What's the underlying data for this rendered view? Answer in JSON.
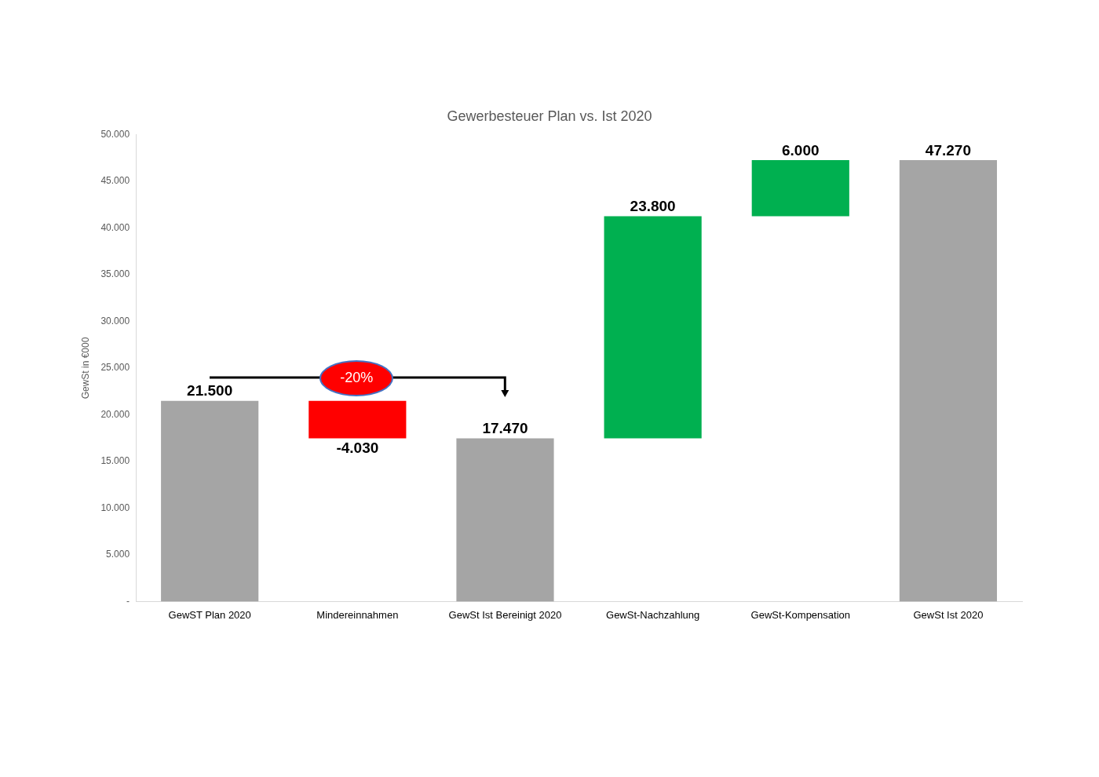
{
  "chart_data": {
    "type": "bar",
    "title": "Gewerbesteuer Plan vs. Ist 2020",
    "ylabel": "GewSt in €000",
    "categories": [
      "GewST Plan 2020",
      "Mindereinnahmen",
      "GewSt Ist Bereinigt 2020",
      "GewSt-Nachzahlung",
      "GewSt-Kompensation",
      "GewSt Ist 2020"
    ],
    "values": [
      21500,
      -4030,
      17470,
      23800,
      6000,
      47270
    ],
    "base": [
      0,
      21500,
      0,
      17470,
      41270,
      0
    ],
    "colors": [
      "#a5a5a5",
      "#ff0000",
      "#a5a5a5",
      "#00b050",
      "#00b050",
      "#a5a5a5"
    ],
    "value_labels": [
      "21.500",
      "-4.030",
      "17.470",
      "23.800",
      "6.000",
      "47.270"
    ],
    "ylim": [
      0,
      50000
    ],
    "yticks": [
      {
        "value": 0,
        "label": "-"
      },
      {
        "value": 5000,
        "label": "5.000"
      },
      {
        "value": 10000,
        "label": "10.000"
      },
      {
        "value": 15000,
        "label": "15.000"
      },
      {
        "value": 20000,
        "label": "20.000"
      },
      {
        "value": 25000,
        "label": "25.000"
      },
      {
        "value": 30000,
        "label": "30.000"
      },
      {
        "value": 35000,
        "label": "35.000"
      },
      {
        "value": 40000,
        "label": "40.000"
      },
      {
        "value": 45000,
        "label": "45.000"
      },
      {
        "value": 50000,
        "label": "50.000"
      }
    ],
    "annotations": [
      "-20%"
    ],
    "grid": false,
    "legend": false
  }
}
